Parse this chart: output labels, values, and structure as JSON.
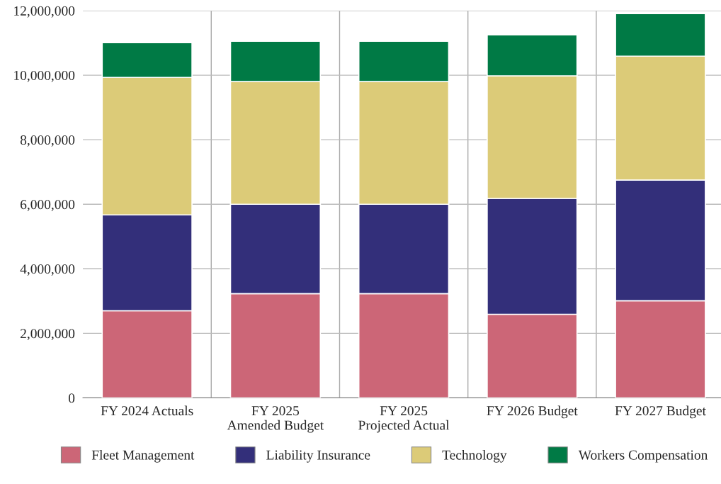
{
  "chart_data": {
    "type": "bar",
    "stacked": true,
    "categories": [
      "FY 2024 Actuals",
      "FY 2025\nAmended Budget",
      "FY 2025\nProjected Actual",
      "FY 2026 Budget",
      "FY 2027 Budget"
    ],
    "series": [
      {
        "name": "Fleet Management",
        "color": "#cc6677",
        "values": [
          2700000,
          3230000,
          3230000,
          2590000,
          3010000
        ]
      },
      {
        "name": "Liability Insurance",
        "color": "#332f7a",
        "values": [
          2970000,
          2770000,
          2770000,
          3590000,
          3740000
        ]
      },
      {
        "name": "Technology",
        "color": "#dccb78",
        "values": [
          4260000,
          3800000,
          3800000,
          3800000,
          3840000
        ]
      },
      {
        "name": "Workers Compensation",
        "color": "#007a45",
        "values": [
          1080000,
          1250000,
          1250000,
          1270000,
          1320000
        ]
      }
    ],
    "ylim": [
      0,
      12000000
    ],
    "yticks": [
      {
        "value": 0,
        "label": "0"
      },
      {
        "value": 2000000,
        "label": "2,000,000"
      },
      {
        "value": 4000000,
        "label": "4,000,000"
      },
      {
        "value": 6000000,
        "label": "6,000,000"
      },
      {
        "value": 8000000,
        "label": "8,000,000"
      },
      {
        "value": 10000000,
        "label": "10,000,000"
      },
      {
        "value": 12000000,
        "label": "12,000,000"
      }
    ],
    "grid": true,
    "legend": "bottom"
  }
}
